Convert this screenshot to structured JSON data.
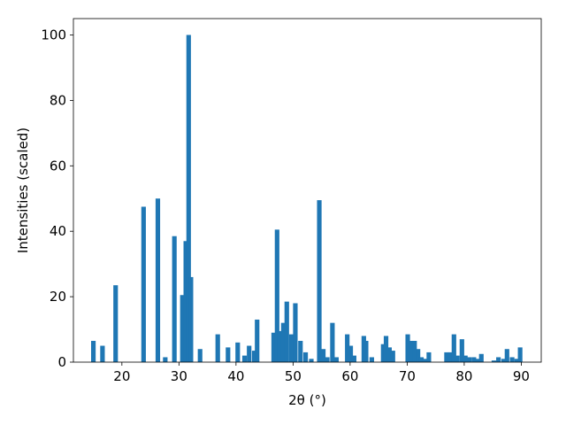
{
  "chart_data": {
    "type": "bar",
    "title": "",
    "xlabel": "2θ (°)",
    "ylabel": "Intensities (scaled)",
    "xlim": [
      11.5,
      93.5
    ],
    "ylim": [
      0,
      105
    ],
    "bar_width": 0.8,
    "color": "#1f77b4",
    "grid": false,
    "legend": "none",
    "xticks": [
      20,
      30,
      40,
      50,
      60,
      70,
      80,
      90
    ],
    "yticks": [
      0,
      20,
      40,
      60,
      80,
      100
    ],
    "series": [
      {
        "x": [
          15.0,
          16.6,
          18.9,
          23.8,
          26.3,
          27.6,
          29.2,
          30.6,
          31.2,
          31.7,
          32.1,
          33.7,
          36.8,
          38.6,
          40.3,
          41.5,
          42.3,
          43.2,
          43.7,
          46.6,
          47.2,
          47.7,
          48.3,
          48.9,
          49.7,
          50.4,
          51.3,
          52.2,
          53.2,
          54.6,
          55.3,
          56.0,
          56.9,
          57.6,
          59.5,
          60.1,
          60.7,
          62.4,
          62.8,
          63.8,
          65.8,
          66.3,
          66.9,
          67.5,
          70.1,
          70.7,
          71.3,
          71.9,
          72.5,
          73.1,
          73.8,
          76.9,
          77.6,
          78.2,
          78.8,
          79.6,
          80.2,
          80.9,
          81.7,
          82.3,
          83.0,
          85.2,
          86.0,
          86.9,
          87.5,
          88.4,
          89.2,
          89.8
        ],
        "values": [
          6.5,
          5.0,
          23.5,
          47.5,
          50.0,
          1.5,
          38.5,
          20.5,
          37.0,
          100.0,
          26.0,
          4.0,
          8.5,
          4.5,
          6.0,
          2.0,
          5.0,
          3.5,
          13.0,
          9.0,
          40.5,
          9.5,
          12.0,
          18.5,
          8.5,
          18.0,
          6.5,
          3.0,
          1.0,
          49.5,
          4.0,
          1.5,
          12.0,
          1.5,
          8.5,
          5.0,
          2.0,
          8.0,
          6.5,
          1.5,
          5.5,
          8.0,
          4.5,
          3.5,
          8.5,
          6.5,
          6.5,
          4.0,
          1.5,
          1.0,
          3.0,
          3.0,
          3.0,
          8.5,
          2.0,
          7.0,
          2.0,
          1.5,
          1.5,
          1.0,
          2.5,
          0.5,
          1.5,
          1.0,
          4.0,
          1.5,
          1.0,
          4.5
        ]
      }
    ]
  }
}
